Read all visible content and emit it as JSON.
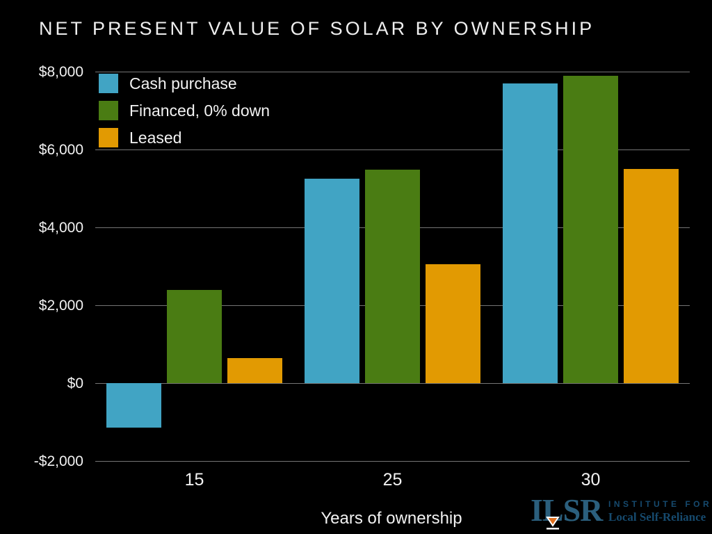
{
  "title": "NET PRESENT VALUE OF SOLAR BY OWNERSHIP",
  "chart_data": {
    "type": "bar",
    "title": "NET PRESENT VALUE OF SOLAR BY OWNERSHIP",
    "categories": [
      "15",
      "25",
      "30"
    ],
    "series": [
      {
        "name": "Cash purchase",
        "color": "#41A4C4",
        "values": [
          -1150,
          5250,
          7700
        ]
      },
      {
        "name": "Financed, 0% down",
        "color": "#4A7C13",
        "values": [
          2400,
          5480,
          7900
        ]
      },
      {
        "name": "Leased",
        "color": "#E29A02",
        "values": [
          640,
          3050,
          5500
        ]
      }
    ],
    "xlabel": "Years of ownership",
    "ylabel": "",
    "ylim": [
      -2000,
      8000
    ],
    "yticks": [
      {
        "value": 8000,
        "label": "$8,000"
      },
      {
        "value": 6000,
        "label": "$6,000"
      },
      {
        "value": 4000,
        "label": "$4,000"
      },
      {
        "value": 2000,
        "label": "$2,000"
      },
      {
        "value": 0,
        "label": "$0"
      },
      {
        "value": -2000,
        "label": "-$2,000"
      }
    ],
    "grid": true,
    "legend_position": "top-left",
    "background": "#000000",
    "text_color": "#F2F2F2",
    "gridline_color": "#757575"
  },
  "logo": {
    "acronym": "ILSR",
    "line1": "INSTITUTE FOR",
    "line2": "Local Self-Reliance",
    "color": "#164A6E",
    "hourglass_color": "#E2701F"
  }
}
